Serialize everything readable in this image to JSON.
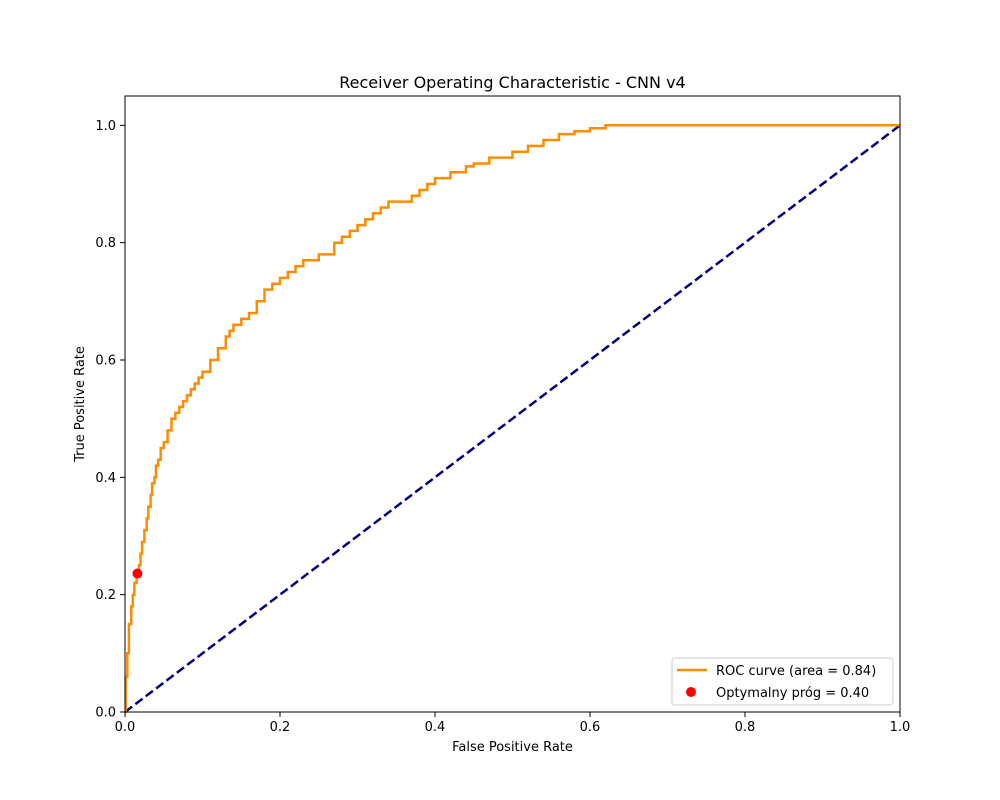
{
  "chart_data": {
    "type": "line",
    "title": "Receiver Operating Characteristic - CNN v4",
    "xlabel": "False Positive Rate",
    "ylabel": "True Positive Rate",
    "xlim": [
      0.0,
      1.0
    ],
    "ylim": [
      0.0,
      1.05
    ],
    "x_ticks": [
      0.0,
      0.2,
      0.4,
      0.6,
      0.8,
      1.0
    ],
    "y_ticks": [
      0.0,
      0.2,
      0.4,
      0.6,
      0.8,
      1.0
    ],
    "x_tick_labels": [
      "0.0",
      "0.2",
      "0.4",
      "0.6",
      "0.8",
      "1.0"
    ],
    "y_tick_labels": [
      "0.0",
      "0.2",
      "0.4",
      "0.6",
      "0.8",
      "1.0"
    ],
    "grid": false,
    "legend_position": "lower-right",
    "series": [
      {
        "name": "ROC curve (area = 0.84)",
        "kind": "line",
        "color": "#ff8c00",
        "x": [
          0.0,
          0.001,
          0.003,
          0.005,
          0.008,
          0.01,
          0.012,
          0.015,
          0.018,
          0.02,
          0.022,
          0.025,
          0.028,
          0.03,
          0.033,
          0.035,
          0.038,
          0.04,
          0.043,
          0.046,
          0.05,
          0.055,
          0.06,
          0.065,
          0.07,
          0.075,
          0.08,
          0.085,
          0.09,
          0.095,
          0.1,
          0.11,
          0.12,
          0.13,
          0.135,
          0.14,
          0.15,
          0.16,
          0.17,
          0.18,
          0.19,
          0.2,
          0.21,
          0.22,
          0.23,
          0.25,
          0.27,
          0.28,
          0.29,
          0.3,
          0.31,
          0.32,
          0.33,
          0.34,
          0.35,
          0.37,
          0.38,
          0.39,
          0.4,
          0.42,
          0.44,
          0.45,
          0.47,
          0.5,
          0.52,
          0.54,
          0.56,
          0.58,
          0.6,
          0.62,
          0.64,
          0.66,
          0.68,
          0.7,
          0.72,
          0.8,
          0.9,
          1.0
        ],
        "y": [
          0.0,
          0.06,
          0.1,
          0.15,
          0.18,
          0.2,
          0.22,
          0.236,
          0.25,
          0.27,
          0.29,
          0.31,
          0.33,
          0.35,
          0.37,
          0.39,
          0.4,
          0.42,
          0.43,
          0.45,
          0.46,
          0.48,
          0.5,
          0.51,
          0.52,
          0.53,
          0.54,
          0.55,
          0.56,
          0.57,
          0.58,
          0.6,
          0.62,
          0.64,
          0.65,
          0.66,
          0.67,
          0.68,
          0.7,
          0.72,
          0.73,
          0.74,
          0.75,
          0.76,
          0.77,
          0.78,
          0.8,
          0.81,
          0.82,
          0.83,
          0.84,
          0.85,
          0.86,
          0.87,
          0.87,
          0.88,
          0.89,
          0.9,
          0.91,
          0.92,
          0.93,
          0.935,
          0.945,
          0.955,
          0.965,
          0.975,
          0.985,
          0.99,
          0.995,
          1.0,
          1.0,
          1.0,
          1.0,
          1.0,
          1.0,
          1.0,
          1.0,
          1.0
        ]
      },
      {
        "name": "",
        "kind": "dashed-line",
        "color": "#000080",
        "x": [
          0.0,
          1.0
        ],
        "y": [
          0.0,
          1.0
        ]
      },
      {
        "name": "Optymalny próg = 0.40",
        "kind": "scatter",
        "color": "#ff0000",
        "x": [
          0.016
        ],
        "y": [
          0.236
        ]
      }
    ]
  }
}
